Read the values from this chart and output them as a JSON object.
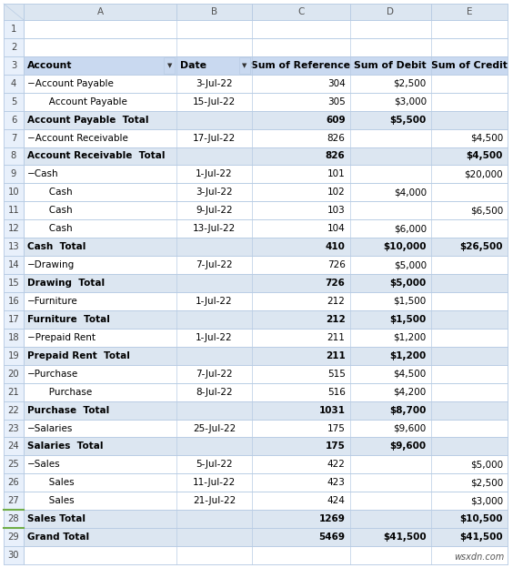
{
  "col_headers": [
    "A",
    "B",
    "C",
    "D",
    "E"
  ],
  "header_row": [
    "Account",
    "Date",
    "Sum of Reference",
    "Sum of Debit",
    "Sum of Credit"
  ],
  "rows": [
    {
      "row": 4,
      "account": "−Account Payable",
      "indent": false,
      "date": "3-Jul-22",
      "ref": "304",
      "debit": "$2,500",
      "credit": "",
      "is_total": false
    },
    {
      "row": 5,
      "account": "   Account Payable",
      "indent": true,
      "date": "15-Jul-22",
      "ref": "305",
      "debit": "$3,000",
      "credit": "",
      "is_total": false
    },
    {
      "row": 6,
      "account": "Account Payable  Total",
      "indent": false,
      "date": "",
      "ref": "609",
      "debit": "$5,500",
      "credit": "",
      "is_total": true
    },
    {
      "row": 7,
      "account": "−Account Receivable",
      "indent": false,
      "date": "17-Jul-22",
      "ref": "826",
      "debit": "",
      "credit": "$4,500",
      "is_total": false
    },
    {
      "row": 8,
      "account": "Account Receivable  Total",
      "indent": false,
      "date": "",
      "ref": "826",
      "debit": "",
      "credit": "$4,500",
      "is_total": true
    },
    {
      "row": 9,
      "account": "−Cash",
      "indent": false,
      "date": "1-Jul-22",
      "ref": "101",
      "debit": "",
      "credit": "$20,000",
      "is_total": false
    },
    {
      "row": 10,
      "account": "   Cash",
      "indent": true,
      "date": "3-Jul-22",
      "ref": "102",
      "debit": "$4,000",
      "credit": "",
      "is_total": false
    },
    {
      "row": 11,
      "account": "   Cash",
      "indent": true,
      "date": "9-Jul-22",
      "ref": "103",
      "debit": "",
      "credit": "$6,500",
      "is_total": false
    },
    {
      "row": 12,
      "account": "   Cash",
      "indent": true,
      "date": "13-Jul-22",
      "ref": "104",
      "debit": "$6,000",
      "credit": "",
      "is_total": false
    },
    {
      "row": 13,
      "account": "Cash  Total",
      "indent": false,
      "date": "",
      "ref": "410",
      "debit": "$10,000",
      "credit": "$26,500",
      "is_total": true
    },
    {
      "row": 14,
      "account": "−Drawing",
      "indent": false,
      "date": "7-Jul-22",
      "ref": "726",
      "debit": "$5,000",
      "credit": "",
      "is_total": false
    },
    {
      "row": 15,
      "account": "Drawing  Total",
      "indent": false,
      "date": "",
      "ref": "726",
      "debit": "$5,000",
      "credit": "",
      "is_total": true
    },
    {
      "row": 16,
      "account": "−Furniture",
      "indent": false,
      "date": "1-Jul-22",
      "ref": "212",
      "debit": "$1,500",
      "credit": "",
      "is_total": false
    },
    {
      "row": 17,
      "account": "Furniture  Total",
      "indent": false,
      "date": "",
      "ref": "212",
      "debit": "$1,500",
      "credit": "",
      "is_total": true
    },
    {
      "row": 18,
      "account": "−Prepaid Rent",
      "indent": false,
      "date": "1-Jul-22",
      "ref": "211",
      "debit": "$1,200",
      "credit": "",
      "is_total": false
    },
    {
      "row": 19,
      "account": "Prepaid Rent  Total",
      "indent": false,
      "date": "",
      "ref": "211",
      "debit": "$1,200",
      "credit": "",
      "is_total": true
    },
    {
      "row": 20,
      "account": "−Purchase",
      "indent": false,
      "date": "7-Jul-22",
      "ref": "515",
      "debit": "$4,500",
      "credit": "",
      "is_total": false
    },
    {
      "row": 21,
      "account": "   Purchase",
      "indent": true,
      "date": "8-Jul-22",
      "ref": "516",
      "debit": "$4,200",
      "credit": "",
      "is_total": false
    },
    {
      "row": 22,
      "account": "Purchase  Total",
      "indent": false,
      "date": "",
      "ref": "1031",
      "debit": "$8,700",
      "credit": "",
      "is_total": true
    },
    {
      "row": 23,
      "account": "−Salaries",
      "indent": false,
      "date": "25-Jul-22",
      "ref": "175",
      "debit": "$9,600",
      "credit": "",
      "is_total": false
    },
    {
      "row": 24,
      "account": "Salaries  Total",
      "indent": false,
      "date": "",
      "ref": "175",
      "debit": "$9,600",
      "credit": "",
      "is_total": true
    },
    {
      "row": 25,
      "account": "−Sales",
      "indent": false,
      "date": "5-Jul-22",
      "ref": "422",
      "debit": "",
      "credit": "$5,000",
      "is_total": false
    },
    {
      "row": 26,
      "account": "   Sales",
      "indent": true,
      "date": "11-Jul-22",
      "ref": "423",
      "debit": "",
      "credit": "$2,500",
      "is_total": false
    },
    {
      "row": 27,
      "account": "   Sales",
      "indent": true,
      "date": "21-Jul-22",
      "ref": "424",
      "debit": "",
      "credit": "$3,000",
      "is_total": false
    },
    {
      "row": 28,
      "account": "Sales Total",
      "indent": false,
      "date": "",
      "ref": "1269",
      "debit": "",
      "credit": "$10,500",
      "is_total": true
    },
    {
      "row": 29,
      "account": "Grand Total",
      "indent": false,
      "date": "",
      "ref": "5469",
      "debit": "$41,500",
      "credit": "$41,500",
      "is_total": true
    }
  ],
  "total_data_rows": 30,
  "watermark": "wsxdn.com",
  "header_bg": "#c9d9f0",
  "total_bg": "#dce6f1",
  "white_bg": "#ffffff",
  "border_color": "#b8cce4",
  "row_num_bg": "#e8f0fb",
  "col_hdr_bg": "#dce6f1",
  "data_font_size": 7.5,
  "header_font_size": 7.8,
  "row_num_font_size": 7.2,
  "col_lbl_font_size": 7.5,
  "grand_total_row": 28,
  "sales_total_row": 27
}
